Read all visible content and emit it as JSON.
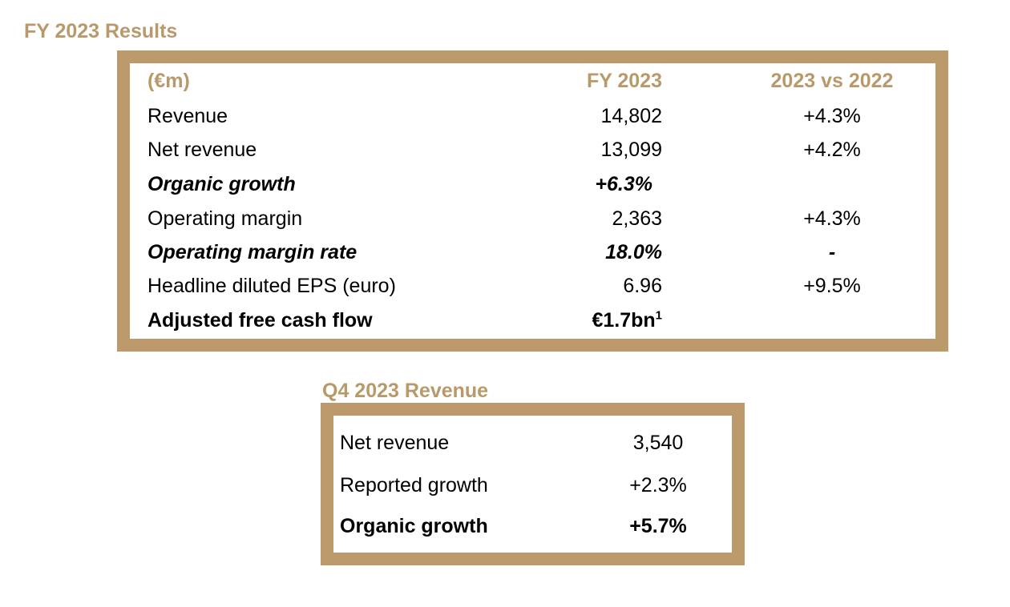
{
  "fy": {
    "title": "FY 2023 Results",
    "header": {
      "label": "(€m)",
      "value": "FY 2023",
      "compare": "2023 vs 2022"
    },
    "rows": [
      {
        "label": "Revenue",
        "value": "14,802",
        "compare": "+4.3%"
      },
      {
        "label": "Net revenue",
        "value": "13,099",
        "compare": "+4.2%"
      },
      {
        "label": "Organic growth",
        "value": "+6.3%",
        "compare": ""
      },
      {
        "label": "Operating margin",
        "value": "2,363",
        "compare": "+4.3%"
      },
      {
        "label": "Operating margin rate",
        "value": "18.0%",
        "compare": "-"
      },
      {
        "label": "Headline diluted EPS (euro)",
        "value": "6.96",
        "compare": "+9.5%"
      },
      {
        "label": "Adjusted free cash flow",
        "value": "€1.7bn",
        "footnote": "1",
        "compare": ""
      }
    ]
  },
  "q4": {
    "title": "Q4 2023 Revenue",
    "rows": [
      {
        "label": "Net revenue",
        "value": "3,540"
      },
      {
        "label": "Reported growth",
        "value": "+2.3%"
      },
      {
        "label": "Organic growth",
        "value": "+5.7%"
      }
    ]
  },
  "colors": {
    "accent": "#bd9a6c",
    "title": "#b89a6a"
  }
}
